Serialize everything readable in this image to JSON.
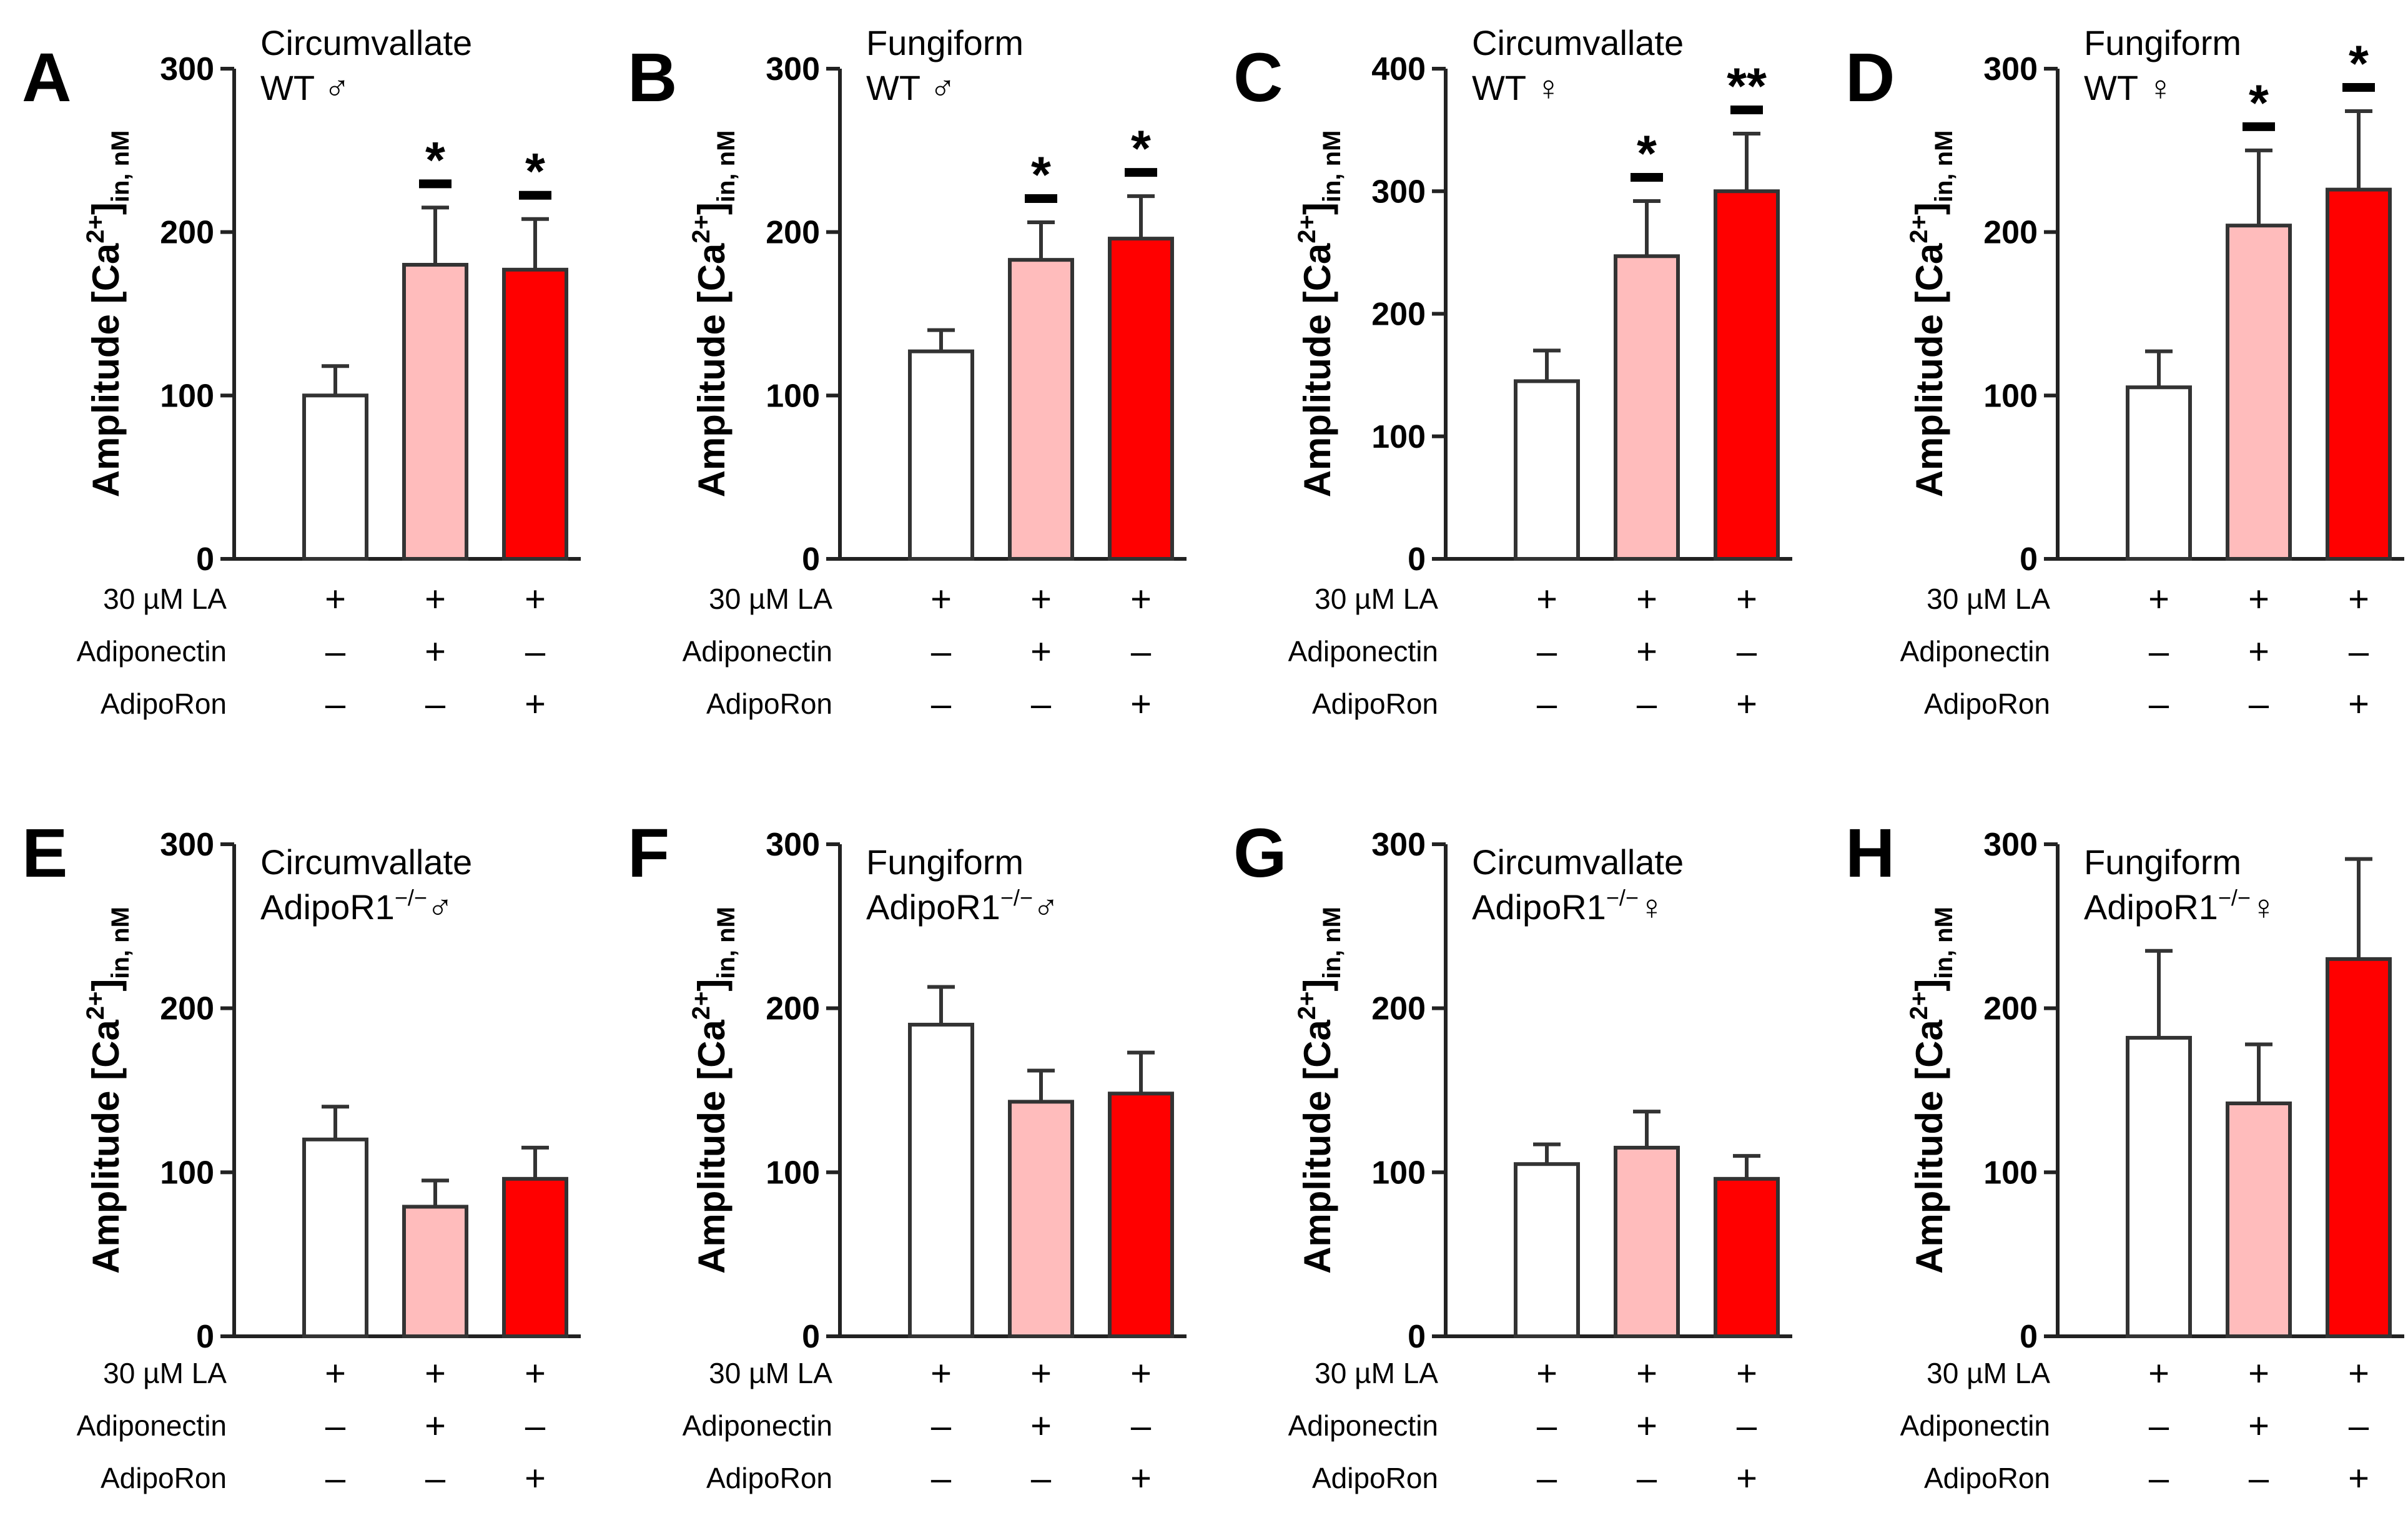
{
  "figure": {
    "background": "#ffffff"
  },
  "colors": {
    "control": "#ffffff",
    "adiponectin": "#ffbcbc",
    "adiporon": "#ff0000",
    "outline": "#333333",
    "axis": "#222222"
  },
  "condition_labels": [
    "30 µM LA",
    "Adiponectin",
    "AdipoRon"
  ],
  "ylabel": {
    "main": "Amplitude [Ca",
    "sup": "2+",
    "close": "]",
    "sub": "in, nM"
  },
  "chart_data": [
    {
      "type": "bar",
      "panel": "A",
      "title": "Circumvallate",
      "genotype": "WT",
      "genotype_sup": "",
      "sex": "♂",
      "ylim": [
        0,
        300
      ],
      "yticks": [
        0,
        100,
        200,
        300
      ],
      "categories": [
        "LA",
        "LA + Adiponectin",
        "LA + AdipoRon"
      ],
      "values": [
        100,
        180,
        177
      ],
      "errors": [
        18,
        35,
        31
      ],
      "significance": [
        "",
        "*",
        "*"
      ],
      "conditions": [
        [
          "+",
          "+",
          "+"
        ],
        [
          "–",
          "+",
          "–"
        ],
        [
          "–",
          "–",
          "+"
        ]
      ]
    },
    {
      "type": "bar",
      "panel": "B",
      "title": "Fungiform",
      "genotype": "WT",
      "genotype_sup": "",
      "sex": "♂",
      "ylim": [
        0,
        300
      ],
      "yticks": [
        0,
        100,
        200,
        300
      ],
      "categories": [
        "LA",
        "LA + Adiponectin",
        "LA + AdipoRon"
      ],
      "values": [
        127,
        183,
        196
      ],
      "errors": [
        13,
        23,
        26
      ],
      "significance": [
        "",
        "*",
        "*"
      ],
      "conditions": [
        [
          "+",
          "+",
          "+"
        ],
        [
          "–",
          "+",
          "–"
        ],
        [
          "–",
          "–",
          "+"
        ]
      ]
    },
    {
      "type": "bar",
      "panel": "C",
      "title": "Circumvallate",
      "genotype": "WT",
      "genotype_sup": "",
      "sex": "♀",
      "ylim": [
        0,
        400
      ],
      "yticks": [
        0,
        100,
        200,
        300,
        400
      ],
      "categories": [
        "LA",
        "LA + Adiponectin",
        "LA + AdipoRon"
      ],
      "values": [
        145,
        247,
        300
      ],
      "errors": [
        25,
        45,
        47
      ],
      "significance": [
        "",
        "*",
        "**"
      ],
      "conditions": [
        [
          "+",
          "+",
          "+"
        ],
        [
          "–",
          "+",
          "–"
        ],
        [
          "–",
          "–",
          "+"
        ]
      ]
    },
    {
      "type": "bar",
      "panel": "D",
      "title": "Fungiform",
      "genotype": "WT",
      "genotype_sup": "",
      "sex": "♀",
      "ylim": [
        0,
        300
      ],
      "yticks": [
        0,
        100,
        200,
        300
      ],
      "categories": [
        "LA",
        "LA + Adiponectin",
        "LA + AdipoRon"
      ],
      "values": [
        105,
        204,
        226
      ],
      "errors": [
        22,
        46,
        48
      ],
      "significance": [
        "",
        "*",
        "*"
      ],
      "conditions": [
        [
          "+",
          "+",
          "+"
        ],
        [
          "–",
          "+",
          "–"
        ],
        [
          "–",
          "–",
          "+"
        ]
      ]
    },
    {
      "type": "bar",
      "panel": "E",
      "title": "Circumvallate",
      "genotype": "AdipoR1",
      "genotype_sup": "−/−",
      "sex": "♂",
      "ylim": [
        0,
        300
      ],
      "yticks": [
        0,
        100,
        200,
        300
      ],
      "categories": [
        "LA",
        "LA + Adiponectin",
        "LA + AdipoRon"
      ],
      "values": [
        120,
        79,
        96
      ],
      "errors": [
        20,
        16,
        19
      ],
      "significance": [
        "",
        "",
        ""
      ],
      "conditions": [
        [
          "+",
          "+",
          "+"
        ],
        [
          "–",
          "+",
          "–"
        ],
        [
          "–",
          "–",
          "+"
        ]
      ]
    },
    {
      "type": "bar",
      "panel": "F",
      "title": "Fungiform",
      "genotype": "AdipoR1",
      "genotype_sup": "−/−",
      "sex": "♂",
      "ylim": [
        0,
        300
      ],
      "yticks": [
        0,
        100,
        200,
        300
      ],
      "categories": [
        "LA",
        "LA + Adiponectin",
        "LA + AdipoRon"
      ],
      "values": [
        190,
        143,
        148
      ],
      "errors": [
        23,
        19,
        25
      ],
      "significance": [
        "",
        "",
        ""
      ],
      "conditions": [
        [
          "+",
          "+",
          "+"
        ],
        [
          "–",
          "+",
          "–"
        ],
        [
          "–",
          "–",
          "+"
        ]
      ]
    },
    {
      "type": "bar",
      "panel": "G",
      "title": "Circumvallate",
      "genotype": "AdipoR1",
      "genotype_sup": "−/−",
      "sex": "♀",
      "ylim": [
        0,
        300
      ],
      "yticks": [
        0,
        100,
        200,
        300
      ],
      "categories": [
        "LA",
        "LA + Adiponectin",
        "LA + AdipoRon"
      ],
      "values": [
        105,
        115,
        96
      ],
      "errors": [
        12,
        22,
        14
      ],
      "significance": [
        "",
        "",
        ""
      ],
      "conditions": [
        [
          "+",
          "+",
          "+"
        ],
        [
          "–",
          "+",
          "–"
        ],
        [
          "–",
          "–",
          "+"
        ]
      ]
    },
    {
      "type": "bar",
      "panel": "H",
      "title": "Fungiform",
      "genotype": "AdipoR1",
      "genotype_sup": "−/−",
      "sex": "♀",
      "ylim": [
        0,
        300
      ],
      "yticks": [
        0,
        100,
        200,
        300
      ],
      "categories": [
        "LA",
        "LA + Adiponectin",
        "LA + AdipoRon"
      ],
      "values": [
        182,
        142,
        230
      ],
      "errors": [
        53,
        36,
        61
      ],
      "significance": [
        "",
        "",
        ""
      ],
      "conditions": [
        [
          "+",
          "+",
          "+"
        ],
        [
          "–",
          "+",
          "–"
        ],
        [
          "–",
          "–",
          "+"
        ]
      ]
    }
  ]
}
